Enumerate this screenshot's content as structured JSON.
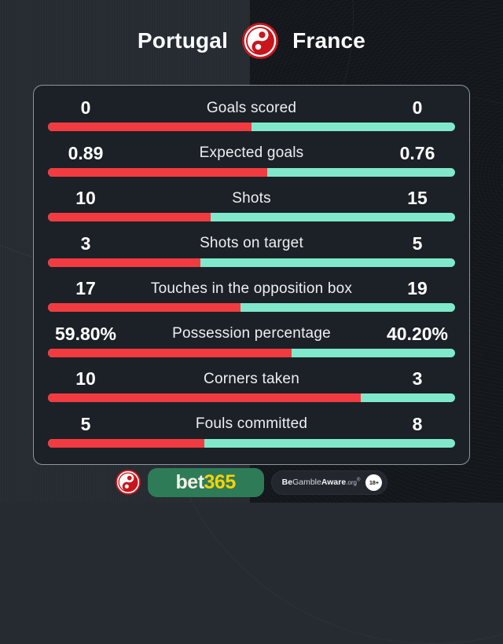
{
  "header": {
    "home_team": "Portugal",
    "away_team": "France"
  },
  "stats": [
    {
      "label": "Goals scored",
      "home": "0",
      "away": "0",
      "home_pct": 50
    },
    {
      "label": "Expected goals",
      "home": "0.89",
      "away": "0.76",
      "home_pct": 53.94
    },
    {
      "label": "Shots",
      "home": "10",
      "away": "15",
      "home_pct": 40
    },
    {
      "label": "Shots on target",
      "home": "3",
      "away": "5",
      "home_pct": 37.5
    },
    {
      "label": "Touches in the opposition box",
      "home": "17",
      "away": "19",
      "home_pct": 47.22
    },
    {
      "label": "Possession percentage",
      "home": "59.80%",
      "away": "40.20%",
      "home_pct": 59.8
    },
    {
      "label": "Corners taken",
      "home": "10",
      "away": "3",
      "home_pct": 76.92
    },
    {
      "label": "Fouls committed",
      "home": "5",
      "away": "8",
      "home_pct": 38.46
    }
  ],
  "footer": {
    "brand_bet": "bet",
    "brand_365": "365",
    "aware_be": "Be",
    "aware_gamble": "Gamble",
    "aware_aware": "Aware",
    "aware_org": ".org",
    "aware_reg": "®",
    "age_badge": "18+"
  },
  "colors": {
    "home_bar": "#f23b40",
    "away_bar": "#80e9cb",
    "card_bg": "#1c2127",
    "bg_left": "#262b32",
    "bg_right": "#13161a",
    "logo_red": "#c8161d",
    "bet365_green": "#2e7b58",
    "bet365_yellow": "#fbd106"
  },
  "chart_data": {
    "type": "bar",
    "orientation": "horizontal-paired",
    "title": "Portugal vs France match stats",
    "categories": [
      "Goals scored",
      "Expected goals",
      "Shots",
      "Shots on target",
      "Touches in the opposition box",
      "Possession percentage",
      "Corners taken",
      "Fouls committed"
    ],
    "series": [
      {
        "name": "Portugal",
        "color": "#f23b40",
        "values": [
          0,
          0.89,
          10,
          3,
          17,
          59.8,
          10,
          5
        ]
      },
      {
        "name": "France",
        "color": "#80e9cb",
        "values": [
          0,
          0.76,
          15,
          5,
          19,
          40.2,
          3,
          8
        ]
      }
    ],
    "value_format_note": "possession shown as percentage with two decimals",
    "legend_position": "none",
    "grid": false
  }
}
